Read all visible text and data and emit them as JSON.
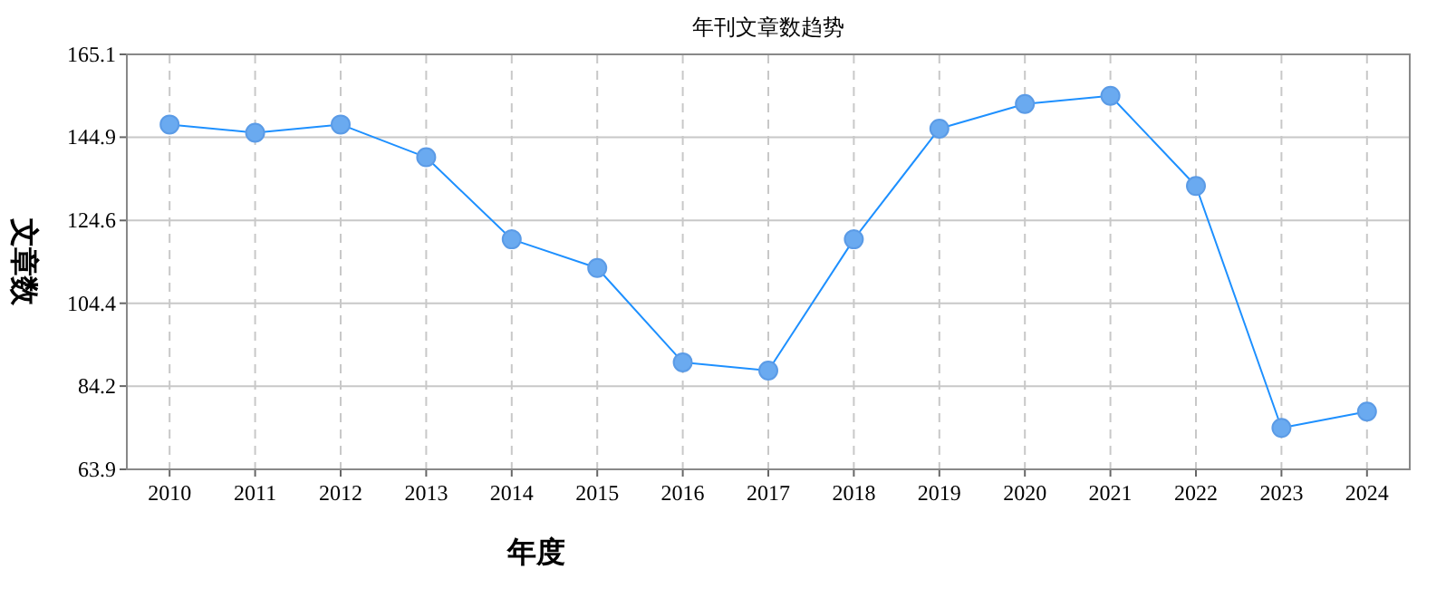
{
  "chart_data": {
    "type": "line",
    "title": "年刊文章数趋势",
    "xlabel": "年度",
    "ylabel": "文章数",
    "categories": [
      "2010",
      "2011",
      "2012",
      "2013",
      "2014",
      "2015",
      "2016",
      "2017",
      "2018",
      "2019",
      "2020",
      "2021",
      "2022",
      "2023",
      "2024"
    ],
    "series": [
      {
        "color": "#1e90ff",
        "values": [
          148,
          146,
          148,
          140,
          120,
          113,
          90,
          88,
          120,
          147,
          153,
          155,
          133,
          74,
          78
        ]
      }
    ],
    "ylim": [
      63.9,
      165.1
    ],
    "yticks": [
      63.9,
      84.2,
      104.4,
      124.6,
      144.9,
      165.1
    ],
    "grid": true,
    "marker": "circle",
    "line_style": "solid"
  }
}
